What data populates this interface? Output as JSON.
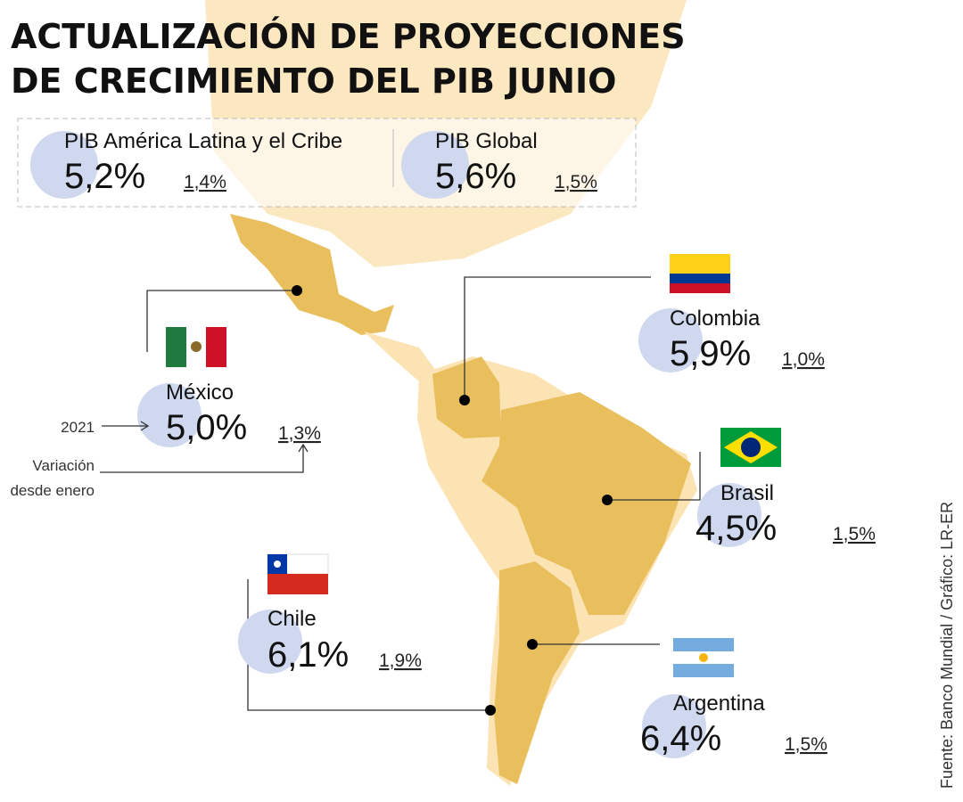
{
  "title": [
    "ACTUALIZACIÓN DE PROYECCIONES",
    "DE CRECIMIENTO DEL PIB JUNIO"
  ],
  "summary": [
    {
      "label": "PIB América Latina y el Cribe",
      "value": "5,2%",
      "variation": "1,4%"
    },
    {
      "label": "PIB Global",
      "value": "5,6%",
      "variation": "1,5%"
    }
  ],
  "countries": [
    {
      "name": "México",
      "value": "5,0%",
      "variation": "1,3%"
    },
    {
      "name": "Colombia",
      "value": "5,9%",
      "variation": "1,0%"
    },
    {
      "name": "Brasil",
      "value": "4,5%",
      "variation": "1,5%"
    },
    {
      "name": "Chile",
      "value": "6,1%",
      "variation": "1,9%"
    },
    {
      "name": "Argentina",
      "value": "6,4%",
      "variation": "1,5%"
    }
  ],
  "legend": {
    "year": "2021",
    "variation": [
      "Variación",
      "desde enero"
    ]
  },
  "source": "Fuente: Banco Mundial / Gráfico: LR-ER"
}
